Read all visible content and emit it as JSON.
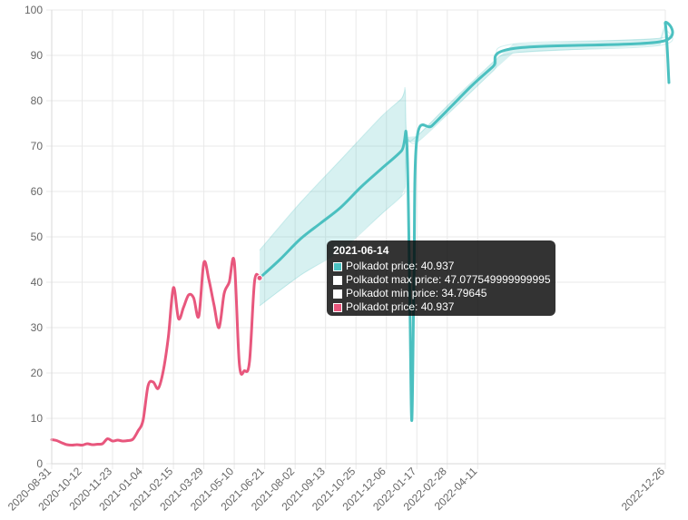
{
  "colors": {
    "forecast": "#4bc0c0",
    "band_fill": "rgba(75,192,192,0.22)",
    "history": "#e8577d",
    "grid": "#e9e9e9",
    "axis_text": "#666666",
    "tooltip_bg": "rgba(0,0,0,0.8)"
  },
  "chart_data": {
    "type": "line",
    "title": "",
    "xlabel": "",
    "ylabel": "",
    "ylim": [
      0,
      100
    ],
    "yticks": [
      0,
      10,
      20,
      30,
      40,
      50,
      60,
      70,
      80,
      90,
      100
    ],
    "xlim": [
      "2020-08-31",
      "2022-12-26"
    ],
    "xticks": [
      "2020-08-31",
      "2020-10-12",
      "2020-11-23",
      "2021-01-04",
      "2021-02-15",
      "2021-03-29",
      "2021-05-10",
      "2021-06-21",
      "2021-08-02",
      "2021-09-13",
      "2021-10-25",
      "2021-12-06",
      "2022-01-17",
      "2022-02-28",
      "2022-04-11",
      "2022-12-26"
    ],
    "grid": true,
    "legend": "none",
    "series": [
      {
        "name": "Polkadot price",
        "role": "history",
        "color": "#e8577d",
        "points": [
          [
            "2020-08-31",
            5.3
          ],
          [
            "2020-09-07",
            5.1
          ],
          [
            "2020-09-14",
            4.6
          ],
          [
            "2020-09-21",
            4.2
          ],
          [
            "2020-09-28",
            4.1
          ],
          [
            "2020-10-05",
            4.2
          ],
          [
            "2020-10-12",
            4.1
          ],
          [
            "2020-10-19",
            4.4
          ],
          [
            "2020-10-26",
            4.2
          ],
          [
            "2020-11-02",
            4.3
          ],
          [
            "2020-11-09",
            4.4
          ],
          [
            "2020-11-16",
            5.5
          ],
          [
            "2020-11-23",
            5.0
          ],
          [
            "2020-11-30",
            5.2
          ],
          [
            "2020-12-07",
            5.0
          ],
          [
            "2020-12-14",
            5.1
          ],
          [
            "2020-12-21",
            5.4
          ],
          [
            "2020-12-28",
            7.2
          ],
          [
            "2021-01-04",
            9.5
          ],
          [
            "2021-01-11",
            17.2
          ],
          [
            "2021-01-18",
            18.0
          ],
          [
            "2021-01-25",
            16.6
          ],
          [
            "2021-02-01",
            20.5
          ],
          [
            "2021-02-08",
            28.0
          ],
          [
            "2021-02-15",
            38.8
          ],
          [
            "2021-02-22",
            32.0
          ],
          [
            "2021-03-01",
            34.5
          ],
          [
            "2021-03-08",
            37.2
          ],
          [
            "2021-03-15",
            36.5
          ],
          [
            "2021-03-22",
            32.5
          ],
          [
            "2021-03-29",
            44.3
          ],
          [
            "2021-04-05",
            40.5
          ],
          [
            "2021-04-12",
            35.0
          ],
          [
            "2021-04-19",
            30.0
          ],
          [
            "2021-04-26",
            37.5
          ],
          [
            "2021-05-03",
            40.0
          ],
          [
            "2021-05-10",
            44.5
          ],
          [
            "2021-05-17",
            22.0
          ],
          [
            "2021-05-24",
            20.5
          ],
          [
            "2021-05-31",
            22.5
          ],
          [
            "2021-06-07",
            40.2
          ],
          [
            "2021-06-14",
            40.937
          ]
        ]
      },
      {
        "name": "Polkadot price",
        "role": "forecast",
        "color": "#4bc0c0",
        "points": [
          [
            "2021-06-14",
            40.937
          ],
          [
            "2021-07-12",
            45.0
          ],
          [
            "2021-08-09",
            49.5
          ],
          [
            "2021-09-06",
            53.0
          ],
          [
            "2021-10-04",
            56.5
          ],
          [
            "2021-11-01",
            61.0
          ],
          [
            "2021-11-29",
            65.0
          ],
          [
            "2021-12-27",
            69.0
          ],
          [
            "2022-01-03",
            71.5
          ],
          [
            "2022-01-07",
            40.0
          ],
          [
            "2022-01-10",
            9.5
          ],
          [
            "2022-01-13",
            40.0
          ],
          [
            "2022-01-17",
            71.5
          ],
          [
            "2022-02-07",
            74.5
          ],
          [
            "2022-03-07",
            79.0
          ],
          [
            "2022-04-04",
            83.5
          ],
          [
            "2022-05-02",
            87.5
          ],
          [
            "2022-05-30",
            91.5
          ],
          [
            "2022-12-19",
            93.0
          ],
          [
            "2022-12-26",
            97.0
          ],
          [
            "2022-12-31",
            84.0
          ]
        ]
      },
      {
        "name": "Polkadot max price",
        "role": "band-upper",
        "color": "#4bc0c0",
        "points": [
          [
            "2021-06-14",
            47.08
          ],
          [
            "2021-08-09",
            57.5
          ],
          [
            "2021-10-04",
            67.0
          ],
          [
            "2021-11-29",
            76.5
          ],
          [
            "2021-12-27",
            80.5
          ],
          [
            "2022-01-01",
            82.5
          ],
          [
            "2022-01-03",
            72.0
          ],
          [
            "2022-01-17",
            72.2
          ],
          [
            "2022-03-07",
            80.0
          ],
          [
            "2022-05-02",
            88.5
          ],
          [
            "2022-05-30",
            92.5
          ],
          [
            "2022-12-19",
            93.8
          ],
          [
            "2022-12-26",
            97.5
          ]
        ]
      },
      {
        "name": "Polkadot min price",
        "role": "band-lower",
        "color": "#4bc0c0",
        "points": [
          [
            "2021-06-14",
            34.8
          ],
          [
            "2021-08-09",
            41.5
          ],
          [
            "2021-10-04",
            47.0
          ],
          [
            "2021-11-29",
            55.0
          ],
          [
            "2021-12-27",
            59.0
          ],
          [
            "2022-01-01",
            61.0
          ],
          [
            "2022-01-03",
            71.0
          ],
          [
            "2022-01-17",
            70.8
          ],
          [
            "2022-03-07",
            78.0
          ],
          [
            "2022-05-02",
            86.5
          ],
          [
            "2022-05-30",
            90.5
          ],
          [
            "2022-12-19",
            92.2
          ],
          [
            "2022-12-26",
            96.0
          ]
        ]
      }
    ],
    "tooltip": {
      "title": "2021-06-14",
      "anchor_date": "2021-06-14",
      "anchor_value": 40.937,
      "rows": [
        {
          "label": "Polkadot price: 40.937",
          "swatch": "#4bc0c0"
        },
        {
          "label": "Polkadot max price: 47.077549999999995",
          "swatch": "#ffffff"
        },
        {
          "label": "Polkadot min price: 34.79645",
          "swatch": "#ffffff"
        },
        {
          "label": "Polkadot price: 40.937",
          "swatch": "#e8577d"
        }
      ]
    }
  }
}
